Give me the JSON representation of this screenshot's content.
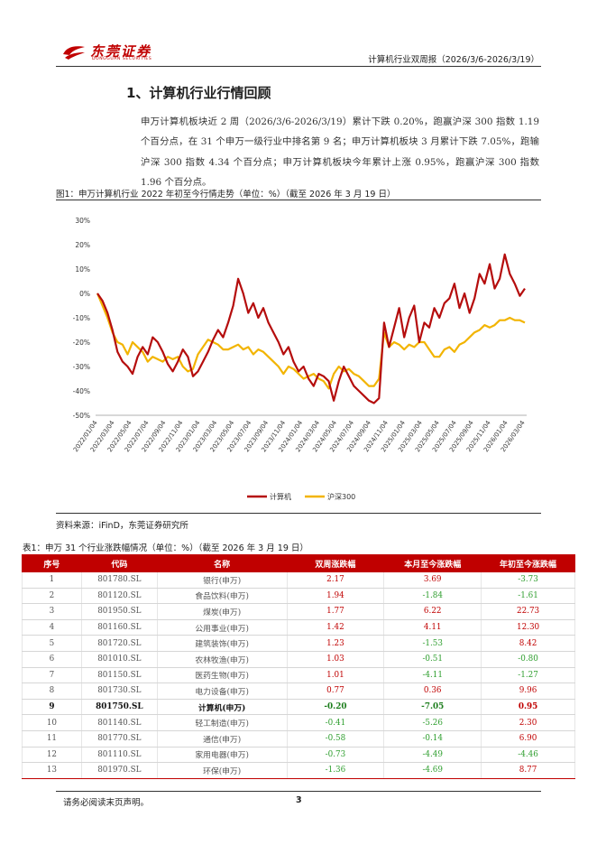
{
  "header": {
    "logo_cn": "东莞证券",
    "logo_en": "DONGGUAN SECURITIES",
    "report_title": "计算机行业双周报（2026/3/6-2026/3/19）"
  },
  "section": {
    "heading": "1、计算机行业行情回顾",
    "paragraph": "申万计算机板块近 2 周（2026/3/6-2026/3/19）累计下跌 0.20%，跑赢沪深 300 指数 1.19 个百分点，在 31 个申万一级行业中排名第 9 名；申万计算机板块 3 月累计下跌 7.05%，跑输沪深 300 指数 4.34 个百分点；申万计算机板块今年累计上涨 0.95%，跑赢沪深 300 指数 1.96 个百分点。"
  },
  "figure": {
    "caption": "图1：申万计算机行业 2022 年初至今行情走势（单位：%）（截至 2026 年 3 月 19 日）",
    "source": "资料来源：iFinD，东莞证券研究所"
  },
  "chart_data": {
    "type": "line",
    "title": "",
    "xlabel": "",
    "ylabel": "",
    "ylim": [
      -50,
      30
    ],
    "yticks": [
      "30%",
      "20%",
      "10%",
      "0%",
      "-10%",
      "-20%",
      "-30%",
      "-40%",
      "-50%"
    ],
    "xticks": [
      "2022/01/04",
      "2022/03/04",
      "2022/05/04",
      "2022/07/04",
      "2022/09/04",
      "2022/11/04",
      "2023/01/04",
      "2023/03/04",
      "2023/05/04",
      "2023/07/04",
      "2023/09/04",
      "2023/11/04",
      "2024/01/04",
      "2024/03/04",
      "2024/05/04",
      "2024/07/04",
      "2024/09/04",
      "2024/11/04",
      "2025/01/04",
      "2025/03/04",
      "2025/05/04",
      "2025/07/04",
      "2025/09/04",
      "2025/11/04",
      "2026/01/04",
      "2026/03/04"
    ],
    "grid": false,
    "legend": "bottom",
    "series": [
      {
        "name": "计算机",
        "color": "#b50d0d",
        "values": [
          0,
          -3,
          -8,
          -15,
          -24,
          -28,
          -30,
          -33,
          -26,
          -22,
          -25,
          -18,
          -20,
          -24,
          -29,
          -32,
          -28,
          -23,
          -26,
          -34,
          -32,
          -28,
          -24,
          -19,
          -15,
          -18,
          -12,
          -5,
          6,
          0,
          -8,
          -4,
          -10,
          -6,
          -12,
          -16,
          -20,
          -25,
          -22,
          -28,
          -32,
          -30,
          -35,
          -38,
          -33,
          -34,
          -36,
          -44,
          -36,
          -30,
          -34,
          -38,
          -40,
          -42,
          -44,
          -45,
          -43,
          -12,
          -22,
          -14,
          -6,
          -18,
          -10,
          -5,
          -20,
          -12,
          -14,
          -6,
          -10,
          -4,
          -2,
          4,
          -6,
          0,
          -8,
          -2,
          8,
          4,
          12,
          2,
          6,
          16,
          8,
          4,
          -1,
          2
        ]
      },
      {
        "name": "沪深300",
        "color": "#f2b400",
        "values": [
          0,
          -5,
          -10,
          -16,
          -20,
          -21,
          -25,
          -20,
          -22,
          -24,
          -28,
          -26,
          -27,
          -28,
          -26,
          -27,
          -26,
          -30,
          -32,
          -31,
          -25,
          -22,
          -19,
          -20,
          -21,
          -23,
          -23,
          -22,
          -21,
          -23,
          -22,
          -25,
          -23,
          -24,
          -26,
          -28,
          -30,
          -33,
          -30,
          -31,
          -33,
          -35,
          -34,
          -33,
          -35,
          -36,
          -39,
          -33,
          -30,
          -32,
          -31,
          -33,
          -34,
          -36,
          -38,
          -38,
          -35,
          -16,
          -22,
          -20,
          -21,
          -23,
          -21,
          -22,
          -20,
          -20,
          -23,
          -26,
          -26,
          -23,
          -22,
          -24,
          -21,
          -20,
          -18,
          -16,
          -15,
          -13,
          -14,
          -13,
          -11,
          -11,
          -10,
          -11,
          -11,
          -12
        ]
      }
    ]
  },
  "table": {
    "caption": "表1：申万 31 个行业涨跌幅情况（单位：%）（截至 2026 年 3 月 19 日）",
    "headers": [
      "序号",
      "代码",
      "名称",
      "双周涨跌幅",
      "本月至今涨跌幅",
      "年初至今涨跌幅"
    ],
    "rows": [
      [
        "1",
        "801780.SL",
        "银行(申万)",
        "2.17",
        "3.69",
        "-3.73"
      ],
      [
        "2",
        "801120.SL",
        "食品饮料(申万)",
        "1.94",
        "-1.84",
        "-1.61"
      ],
      [
        "3",
        "801950.SL",
        "煤炭(申万)",
        "1.77",
        "6.22",
        "22.73"
      ],
      [
        "4",
        "801160.SL",
        "公用事业(申万)",
        "1.42",
        "4.11",
        "12.30"
      ],
      [
        "5",
        "801720.SL",
        "建筑装饰(申万)",
        "1.23",
        "-1.53",
        "8.42"
      ],
      [
        "6",
        "801010.SL",
        "农林牧渔(申万)",
        "1.03",
        "-0.51",
        "-0.80"
      ],
      [
        "7",
        "801150.SL",
        "医药生物(申万)",
        "1.01",
        "-4.11",
        "-1.27"
      ],
      [
        "8",
        "801730.SL",
        "电力设备(申万)",
        "0.77",
        "0.36",
        "9.96"
      ],
      [
        "9",
        "801750.SL",
        "计算机(申万)",
        "-0.20",
        "-7.05",
        "0.95"
      ],
      [
        "10",
        "801140.SL",
        "轻工制造(申万)",
        "-0.41",
        "-5.26",
        "2.30"
      ],
      [
        "11",
        "801770.SL",
        "通信(申万)",
        "-0.58",
        "-0.14",
        "6.90"
      ],
      [
        "12",
        "801110.SL",
        "家用电器(申万)",
        "-0.73",
        "-4.49",
        "-4.46"
      ],
      [
        "13",
        "801970.SL",
        "环保(申万)",
        "-1.36",
        "-4.69",
        "8.77"
      ]
    ],
    "highlight_row": 9
  },
  "footer": {
    "note": "请务必阅读末页声明。",
    "page": "3"
  }
}
